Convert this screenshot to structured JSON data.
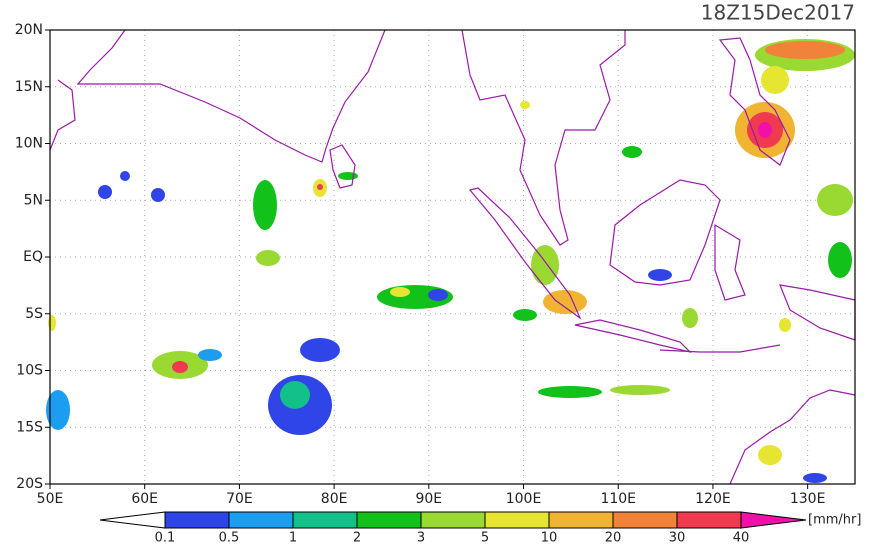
{
  "title": "18Z15Dec2017",
  "map": {
    "lon_range": [
      50,
      135
    ],
    "lat_range": [
      -20,
      20
    ],
    "lon_ticks": [
      {
        "value": 50,
        "label": "50E"
      },
      {
        "value": 60,
        "label": "60E"
      },
      {
        "value": 70,
        "label": "70E"
      },
      {
        "value": 80,
        "label": "80E"
      },
      {
        "value": 90,
        "label": "90E"
      },
      {
        "value": 100,
        "label": "100E"
      },
      {
        "value": 110,
        "label": "110E"
      },
      {
        "value": 120,
        "label": "120E"
      },
      {
        "value": 130,
        "label": "130E"
      }
    ],
    "lat_ticks": [
      {
        "value": 20,
        "label": "20N"
      },
      {
        "value": 15,
        "label": "15N"
      },
      {
        "value": 10,
        "label": "10N"
      },
      {
        "value": 5,
        "label": "5N"
      },
      {
        "value": 0,
        "label": "EQ"
      },
      {
        "value": -5,
        "label": "5S"
      },
      {
        "value": -10,
        "label": "10S"
      },
      {
        "value": -15,
        "label": "15S"
      },
      {
        "value": -20,
        "label": "20S"
      }
    ],
    "grid": true
  },
  "colorbar": {
    "levels": [
      0.1,
      0.5,
      1,
      2,
      3,
      5,
      10,
      20,
      30,
      40
    ],
    "unit": "[mm/hr]",
    "colors": [
      "#ffffff",
      "#2f45e8",
      "#1c9ef0",
      "#14c08a",
      "#12c21a",
      "#9ad832",
      "#e6e632",
      "#f0b432",
      "#f0823a",
      "#f03a50",
      "#f012a8"
    ]
  }
}
